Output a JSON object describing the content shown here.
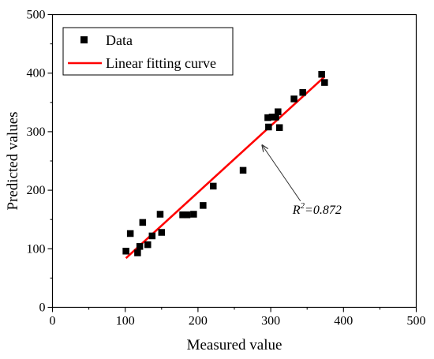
{
  "chart_data": {
    "type": "scatter",
    "title": "",
    "xlabel": "Measured value",
    "ylabel": "Predicted values",
    "xlim": [
      0,
      500
    ],
    "ylim": [
      0,
      500
    ],
    "xticks": [
      0,
      100,
      200,
      300,
      400,
      500
    ],
    "yticks": [
      0,
      100,
      200,
      300,
      400,
      500
    ],
    "grid": false,
    "legend_position": "top-left",
    "series": [
      {
        "name": "Data",
        "kind": "scatter",
        "marker": "square",
        "color": "#000000",
        "points": [
          [
            101,
            96
          ],
          [
            107,
            126
          ],
          [
            117,
            93
          ],
          [
            120,
            104
          ],
          [
            124,
            145
          ],
          [
            131,
            107
          ],
          [
            137,
            122
          ],
          [
            148,
            159
          ],
          [
            150,
            128
          ],
          [
            179,
            158
          ],
          [
            185,
            158
          ],
          [
            194,
            159
          ],
          [
            207,
            174
          ],
          [
            221,
            207
          ],
          [
            262,
            234
          ],
          [
            296,
            324
          ],
          [
            297,
            308
          ],
          [
            302,
            325
          ],
          [
            307,
            325
          ],
          [
            310,
            334
          ],
          [
            312,
            307
          ],
          [
            332,
            356
          ],
          [
            344,
            367
          ],
          [
            370,
            398
          ],
          [
            374,
            384
          ]
        ]
      },
      {
        "name": "Linear fitting curve",
        "kind": "line",
        "color": "#ff0000",
        "points": [
          [
            101,
            84
          ],
          [
            374,
            394
          ]
        ]
      }
    ],
    "annotation": {
      "prefix": "R",
      "superscript": "2",
      "suffix": "=0.872",
      "anchor_data": [
        285,
        281
      ],
      "text_data": [
        330,
        160
      ]
    }
  }
}
